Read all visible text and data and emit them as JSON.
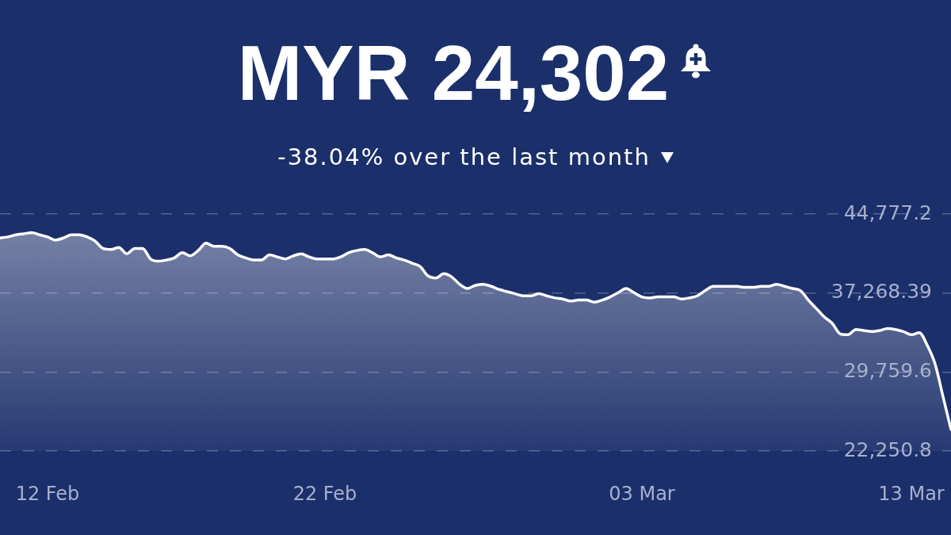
{
  "chart_data": {
    "type": "area",
    "title": "MYR 24,302",
    "subtitle": "-38.04% over the last month",
    "categories": [
      null,
      null,
      null,
      null,
      null,
      null,
      "12 Feb",
      null,
      null,
      null,
      null,
      null,
      null,
      null,
      null,
      null,
      null,
      null,
      null,
      null,
      null,
      null,
      null,
      null,
      null,
      null,
      null,
      null,
      null,
      null,
      null,
      null,
      null,
      null,
      null,
      null,
      null,
      null,
      null,
      null,
      null,
      "22 Feb",
      null,
      null,
      null,
      null,
      null,
      null,
      null,
      null,
      null,
      null,
      null,
      null,
      null,
      null,
      null,
      null,
      null,
      null,
      null,
      null,
      null,
      null,
      null,
      null,
      null,
      null,
      null,
      null,
      null,
      null,
      null,
      null,
      null,
      null,
      null,
      null,
      null,
      null,
      null,
      "03 Mar",
      null,
      null,
      null,
      null,
      null,
      null,
      null,
      null,
      null,
      null,
      null,
      null,
      null,
      null,
      null,
      null,
      null,
      null,
      null,
      null,
      null,
      null,
      null,
      null,
      null,
      null,
      null,
      null,
      null,
      null,
      null,
      null,
      null,
      "13 Mar",
      null,
      null,
      null,
      null,
      null
    ],
    "values": [
      42500,
      42600,
      42800,
      42900,
      43000,
      42800,
      42600,
      42300,
      42500,
      42800,
      42800,
      42600,
      42200,
      41500,
      41400,
      41600,
      41000,
      41500,
      41500,
      40500,
      40300,
      40400,
      40600,
      41100,
      40800,
      41300,
      42000,
      41700,
      41700,
      41500,
      40900,
      40600,
      40400,
      40400,
      40900,
      40700,
      40500,
      40800,
      41000,
      40700,
      40500,
      40500,
      40500,
      40700,
      41100,
      41300,
      41400,
      41100,
      40700,
      40900,
      40600,
      40400,
      40100,
      39800,
      38900,
      38700,
      39100,
      38800,
      38100,
      37700,
      38000,
      38100,
      37900,
      37600,
      37400,
      37200,
      37000,
      37000,
      37200,
      37000,
      36800,
      36700,
      36500,
      36600,
      36600,
      36400,
      36600,
      36900,
      37300,
      37700,
      37300,
      36900,
      36800,
      36900,
      36900,
      36900,
      36700,
      36800,
      37000,
      37500,
      37900,
      37900,
      37900,
      37900,
      37800,
      37800,
      37900,
      37900,
      38100,
      37900,
      37700,
      37500,
      36600,
      35800,
      35000,
      34400,
      33400,
      33300,
      33800,
      33700,
      33600,
      33700,
      33900,
      33800,
      33600,
      33300,
      33500,
      32300,
      30500,
      27400,
      24300
    ],
    "color": "#ffffff",
    "ylim": [
      22250.8,
      44777.2
    ],
    "yticks": [
      {
        "value": 44777.2,
        "label": "44,777.2"
      },
      {
        "value": 37268.39,
        "label": "37,268.39"
      },
      {
        "value": 29759.6,
        "label": "29,759.6"
      },
      {
        "value": 22250.8,
        "label": "22,250.8"
      }
    ],
    "grid": "y"
  }
}
